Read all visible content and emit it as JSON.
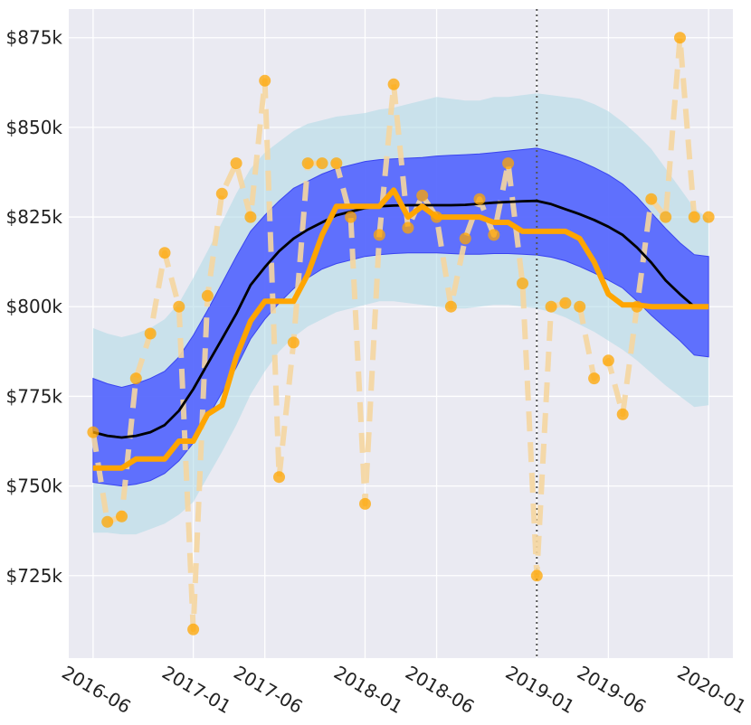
{
  "chart_data": {
    "type": "line",
    "title": "",
    "xlabel": "",
    "ylabel": "",
    "xlim_months": [
      -1.7,
      44.7
    ],
    "ylim": [
      702,
      883
    ],
    "y_ticks": [
      {
        "value": 725,
        "label": "$725k"
      },
      {
        "value": 750,
        "label": "$750k"
      },
      {
        "value": 775,
        "label": "$775k"
      },
      {
        "value": 800,
        "label": "$800k"
      },
      {
        "value": 825,
        "label": "$825k"
      },
      {
        "value": 850,
        "label": "$850k"
      },
      {
        "value": 875,
        "label": "$875k"
      }
    ],
    "x_ticks": [
      {
        "month": 0,
        "label": "2016-06"
      },
      {
        "month": 7,
        "label": "2017-01"
      },
      {
        "month": 12,
        "label": "2017-06"
      },
      {
        "month": 19,
        "label": "2018-01"
      },
      {
        "month": 24,
        "label": "2018-06"
      },
      {
        "month": 31,
        "label": "2019-01"
      },
      {
        "month": 36,
        "label": "2019-06"
      },
      {
        "month": 43,
        "label": "2020-01"
      }
    ],
    "vline_month": 31,
    "colors": {
      "outer_band": "#add8e6",
      "inner_band": "#5060ff",
      "mean_line": "#000000",
      "smoothed_line": "#ffa500",
      "observed_points": "#ffa500",
      "observed_dash": "#f5d6a0",
      "vline": "#555555",
      "grid": "#ffffff",
      "background": "#eaeaf2"
    },
    "series": [
      {
        "name": "observed",
        "x": [
          0,
          1,
          2,
          3,
          4,
          5,
          6,
          7,
          8,
          9,
          10,
          11,
          12,
          13,
          14,
          15,
          16,
          17,
          18,
          19,
          20,
          21,
          22,
          23,
          24,
          25,
          26,
          27,
          28,
          29,
          30,
          31,
          32,
          33,
          34,
          35,
          36,
          37,
          38,
          39,
          40,
          41,
          42,
          43
        ],
        "values": [
          765,
          740,
          741.5,
          780,
          792.5,
          815,
          800,
          710,
          803,
          831.5,
          840,
          825,
          863,
          752.5,
          790,
          840,
          840,
          840,
          825,
          745,
          820,
          862,
          822,
          831,
          825,
          800,
          819,
          830,
          820,
          840,
          806.5,
          725,
          800,
          801,
          800,
          780,
          785,
          770,
          800,
          830,
          825,
          875,
          825,
          825
        ]
      },
      {
        "name": "smoothed",
        "x": [
          0,
          1,
          2,
          3,
          4,
          5,
          6,
          7,
          8,
          9,
          10,
          11,
          12,
          13,
          14,
          15,
          16,
          17,
          18,
          19,
          20,
          21,
          22,
          23,
          24,
          25,
          26,
          27,
          28,
          29,
          30,
          31,
          32,
          33,
          34,
          35,
          36,
          37,
          38,
          39,
          40,
          41,
          42,
          43
        ],
        "values": [
          755,
          755,
          755,
          757.5,
          757.5,
          757.5,
          762.5,
          762.5,
          770,
          772.5,
          786,
          796,
          801.5,
          801.5,
          801.5,
          809,
          820,
          828,
          828,
          828,
          828,
          832.5,
          825,
          828,
          825,
          825,
          825,
          825,
          823.5,
          823.5,
          821,
          821,
          821,
          821,
          819,
          812.5,
          803.5,
          800.5,
          800.5,
          800,
          800,
          800,
          800,
          800
        ]
      },
      {
        "name": "mean",
        "x": [
          0,
          1,
          2,
          3,
          4,
          5,
          6,
          7,
          8,
          9,
          10,
          11,
          12,
          13,
          14,
          15,
          16,
          17,
          18,
          19,
          20,
          21,
          22,
          23,
          24,
          25,
          26,
          27,
          28,
          29,
          30,
          31,
          32,
          33,
          34,
          35,
          36,
          37,
          38,
          39,
          40,
          41,
          42,
          43
        ],
        "values": [
          765,
          764,
          763.5,
          764,
          765,
          767,
          771,
          777,
          784,
          791,
          798,
          806,
          811,
          815.5,
          819,
          821.5,
          823.5,
          825.5,
          826.5,
          827.5,
          828,
          828.2,
          828.3,
          828.3,
          828.3,
          828.3,
          828.4,
          828.7,
          829,
          829.2,
          829.4,
          829.5,
          828.6,
          827.2,
          825.8,
          824.2,
          822.3,
          820,
          816.5,
          812.3,
          807.3,
          803.5,
          800,
          800
        ]
      }
    ],
    "bands": [
      {
        "name": "outer",
        "x": [
          0,
          1,
          2,
          3,
          4,
          5,
          6,
          7,
          8,
          9,
          10,
          11,
          12,
          13,
          14,
          15,
          16,
          17,
          18,
          19,
          20,
          21,
          22,
          23,
          24,
          25,
          26,
          27,
          28,
          29,
          30,
          31,
          32,
          33,
          34,
          35,
          36,
          37,
          38,
          39,
          40,
          41,
          42,
          43
        ],
        "upper": [
          794,
          792.5,
          791.5,
          792.5,
          794,
          796.5,
          801,
          808,
          815.5,
          823.5,
          831.5,
          838.5,
          843,
          846,
          849,
          851,
          852,
          853,
          853.5,
          854,
          855,
          855.5,
          856.5,
          857.5,
          858.5,
          858,
          857.5,
          857.5,
          858.5,
          858.5,
          859,
          859.5,
          859,
          858.5,
          858,
          856.5,
          854.5,
          851.5,
          848,
          844,
          838.5,
          833,
          827.5,
          824.5
        ],
        "lower": [
          737,
          737,
          736.5,
          736.5,
          738,
          739.5,
          742,
          745.5,
          752.5,
          759.5,
          767,
          775.5,
          782,
          787.5,
          791.5,
          794.5,
          796.5,
          798.5,
          799.5,
          800.5,
          801.5,
          801.5,
          801,
          800.5,
          800,
          799.5,
          799.5,
          800,
          800.5,
          800.5,
          800,
          799.5,
          798.5,
          797,
          795,
          793,
          790.5,
          788,
          785,
          781.5,
          778,
          775,
          772,
          772.5
        ]
      },
      {
        "name": "inner",
        "x": [
          0,
          1,
          2,
          3,
          4,
          5,
          6,
          7,
          8,
          9,
          10,
          11,
          12,
          13,
          14,
          15,
          16,
          17,
          18,
          19,
          20,
          21,
          22,
          23,
          24,
          25,
          26,
          27,
          28,
          29,
          30,
          31,
          32,
          33,
          34,
          35,
          36,
          37,
          38,
          39,
          40,
          41,
          42,
          43
        ],
        "upper": [
          780,
          778.5,
          777.5,
          778.5,
          780,
          782,
          786,
          792,
          799,
          806.5,
          814,
          821,
          825.5,
          829.5,
          833,
          835,
          837,
          838.5,
          839.5,
          840.5,
          841,
          841.2,
          841.4,
          841.6,
          842,
          842.2,
          842.4,
          842.6,
          843,
          843.4,
          843.8,
          844.2,
          843.2,
          842,
          840.6,
          838.8,
          836.8,
          834.2,
          830.6,
          826.2,
          821.8,
          817.8,
          814.5,
          814
        ],
        "lower": [
          751,
          750.5,
          750,
          750.5,
          751.5,
          753.5,
          757,
          762,
          769,
          776,
          783,
          791,
          796.5,
          801,
          805,
          808,
          810.5,
          812,
          813,
          814,
          814.5,
          814.8,
          815,
          815,
          815,
          814.8,
          814.6,
          814.6,
          814.8,
          814.8,
          814.6,
          814.4,
          813.8,
          812.8,
          811.2,
          809.4,
          807.4,
          805.2,
          801.6,
          797.6,
          794,
          790.5,
          786.5,
          786
        ]
      }
    ]
  }
}
